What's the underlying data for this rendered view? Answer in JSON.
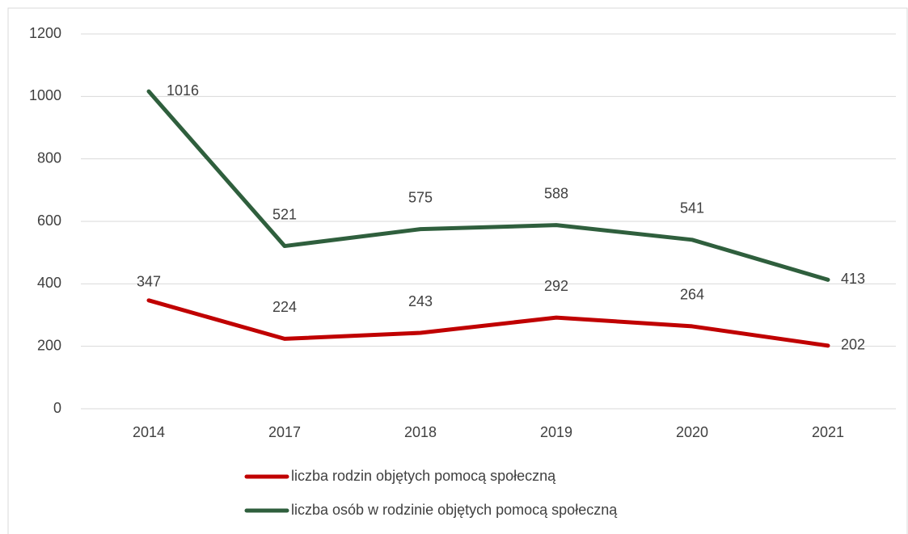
{
  "chart_data": {
    "type": "line",
    "categories": [
      "2014",
      "2017",
      "2018",
      "2019",
      "2020",
      "2021"
    ],
    "series": [
      {
        "name": "liczba rodzin objętych pomocą społeczną",
        "color": "#c00000",
        "values": [
          347,
          224,
          243,
          292,
          264,
          202
        ]
      },
      {
        "name": "liczba osób w rodzinie objętych pomocą społeczną",
        "color": "#2f5f3d",
        "values": [
          1016,
          521,
          575,
          588,
          541,
          413
        ]
      }
    ],
    "ylim": [
      0,
      1200
    ],
    "yticks": [
      0,
      200,
      400,
      600,
      800,
      1000,
      1200
    ],
    "grid": true,
    "legend": "bottom"
  }
}
